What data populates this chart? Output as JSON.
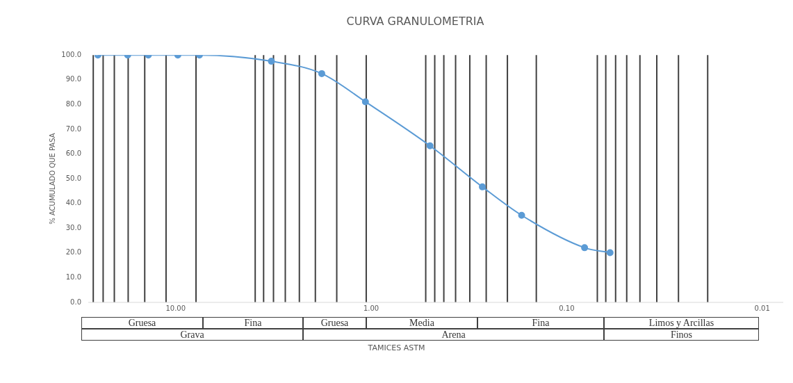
{
  "chart_data": {
    "type": "line",
    "title": "CURVA GRANULOMETRIA",
    "xlabel": "TAMICES ASTM",
    "ylabel": "% ACUMULADO QUE PASA",
    "log": "x",
    "xlim": [
      28,
      0.0078
    ],
    "ylim": [
      0,
      100
    ],
    "xticks": [
      {
        "value": 10,
        "label": "10.00"
      },
      {
        "value": 1,
        "label": "1.00"
      },
      {
        "value": 0.1,
        "label": "0.10"
      },
      {
        "value": 0.01,
        "label": "0.01"
      }
    ],
    "yticks": [
      {
        "value": 0,
        "label": "0.0"
      },
      {
        "value": 10,
        "label": "10.0"
      },
      {
        "value": 20,
        "label": "20.0"
      },
      {
        "value": 30,
        "label": "30.0"
      },
      {
        "value": 40,
        "label": "40.0"
      },
      {
        "value": 50,
        "label": "50.0"
      },
      {
        "value": 60,
        "label": "60.0"
      },
      {
        "value": 70,
        "label": "70.0"
      },
      {
        "value": 80,
        "label": "80.0"
      },
      {
        "value": 90,
        "label": "90.0"
      },
      {
        "value": 100,
        "label": "100.0"
      }
    ],
    "grid": false,
    "legend": false,
    "marker": "circle",
    "line_style": "solid",
    "series": [
      {
        "color": "#5b9bd5",
        "x": [
          25,
          17.6,
          13.8,
          9.75,
          7.56,
          3.24,
          1.79,
          1.07,
          0.5,
          0.27,
          0.17,
          0.081,
          0.06
        ],
        "values": [
          100,
          100,
          100,
          100,
          100,
          97.5,
          92.5,
          81.1,
          63.3,
          46.7,
          35.2,
          22.1,
          20.1
        ]
      }
    ],
    "ref_lines": [
      {
        "axis": "x",
        "value": 26.4,
        "color": "#404040"
      },
      {
        "axis": "x",
        "value": 23.5,
        "color": "#404040"
      },
      {
        "axis": "x",
        "value": 20.6,
        "color": "#404040"
      },
      {
        "axis": "x",
        "value": 17.5,
        "color": "#404040"
      },
      {
        "axis": "x",
        "value": 14.4,
        "color": "#404040"
      },
      {
        "axis": "x",
        "value": 11.2,
        "color": "#404040"
      },
      {
        "axis": "x",
        "value": 7.87,
        "color": "#404040"
      },
      {
        "axis": "x",
        "value": 3.92,
        "color": "#404040"
      },
      {
        "axis": "x",
        "value": 3.55,
        "color": "#404040"
      },
      {
        "axis": "x",
        "value": 3.16,
        "color": "#404040"
      },
      {
        "axis": "x",
        "value": 2.75,
        "color": "#404040"
      },
      {
        "axis": "x",
        "value": 2.33,
        "color": "#404040"
      },
      {
        "axis": "x",
        "value": 1.93,
        "color": "#404040"
      },
      {
        "axis": "x",
        "value": 1.5,
        "color": "#404040"
      },
      {
        "axis": "x",
        "value": 1.06,
        "color": "#404040"
      },
      {
        "axis": "x",
        "value": 0.526,
        "color": "#404040"
      },
      {
        "axis": "x",
        "value": 0.473,
        "color": "#404040"
      },
      {
        "axis": "x",
        "value": 0.425,
        "color": "#404040"
      },
      {
        "axis": "x",
        "value": 0.37,
        "color": "#404040"
      },
      {
        "axis": "x",
        "value": 0.313,
        "color": "#404040"
      },
      {
        "axis": "x",
        "value": 0.258,
        "color": "#404040"
      },
      {
        "axis": "x",
        "value": 0.201,
        "color": "#404040"
      },
      {
        "axis": "x",
        "value": 0.143,
        "color": "#404040"
      },
      {
        "axis": "x",
        "value": 0.0697,
        "color": "#404040"
      },
      {
        "axis": "x",
        "value": 0.0631,
        "color": "#404040"
      },
      {
        "axis": "x",
        "value": 0.0562,
        "color": "#404040"
      },
      {
        "axis": "x",
        "value": 0.0493,
        "color": "#404040"
      },
      {
        "axis": "x",
        "value": 0.0422,
        "color": "#404040"
      },
      {
        "axis": "x",
        "value": 0.0346,
        "color": "#404040"
      },
      {
        "axis": "x",
        "value": 0.0268,
        "color": "#404040"
      },
      {
        "axis": "x",
        "value": 0.019,
        "color": "#404040"
      }
    ],
    "annotations": [
      "Gruesa",
      "Fina",
      "Gruesa",
      "Media",
      "Fina",
      "Limos y Arcillas",
      "Grava",
      "Arena",
      "Finos"
    ]
  }
}
